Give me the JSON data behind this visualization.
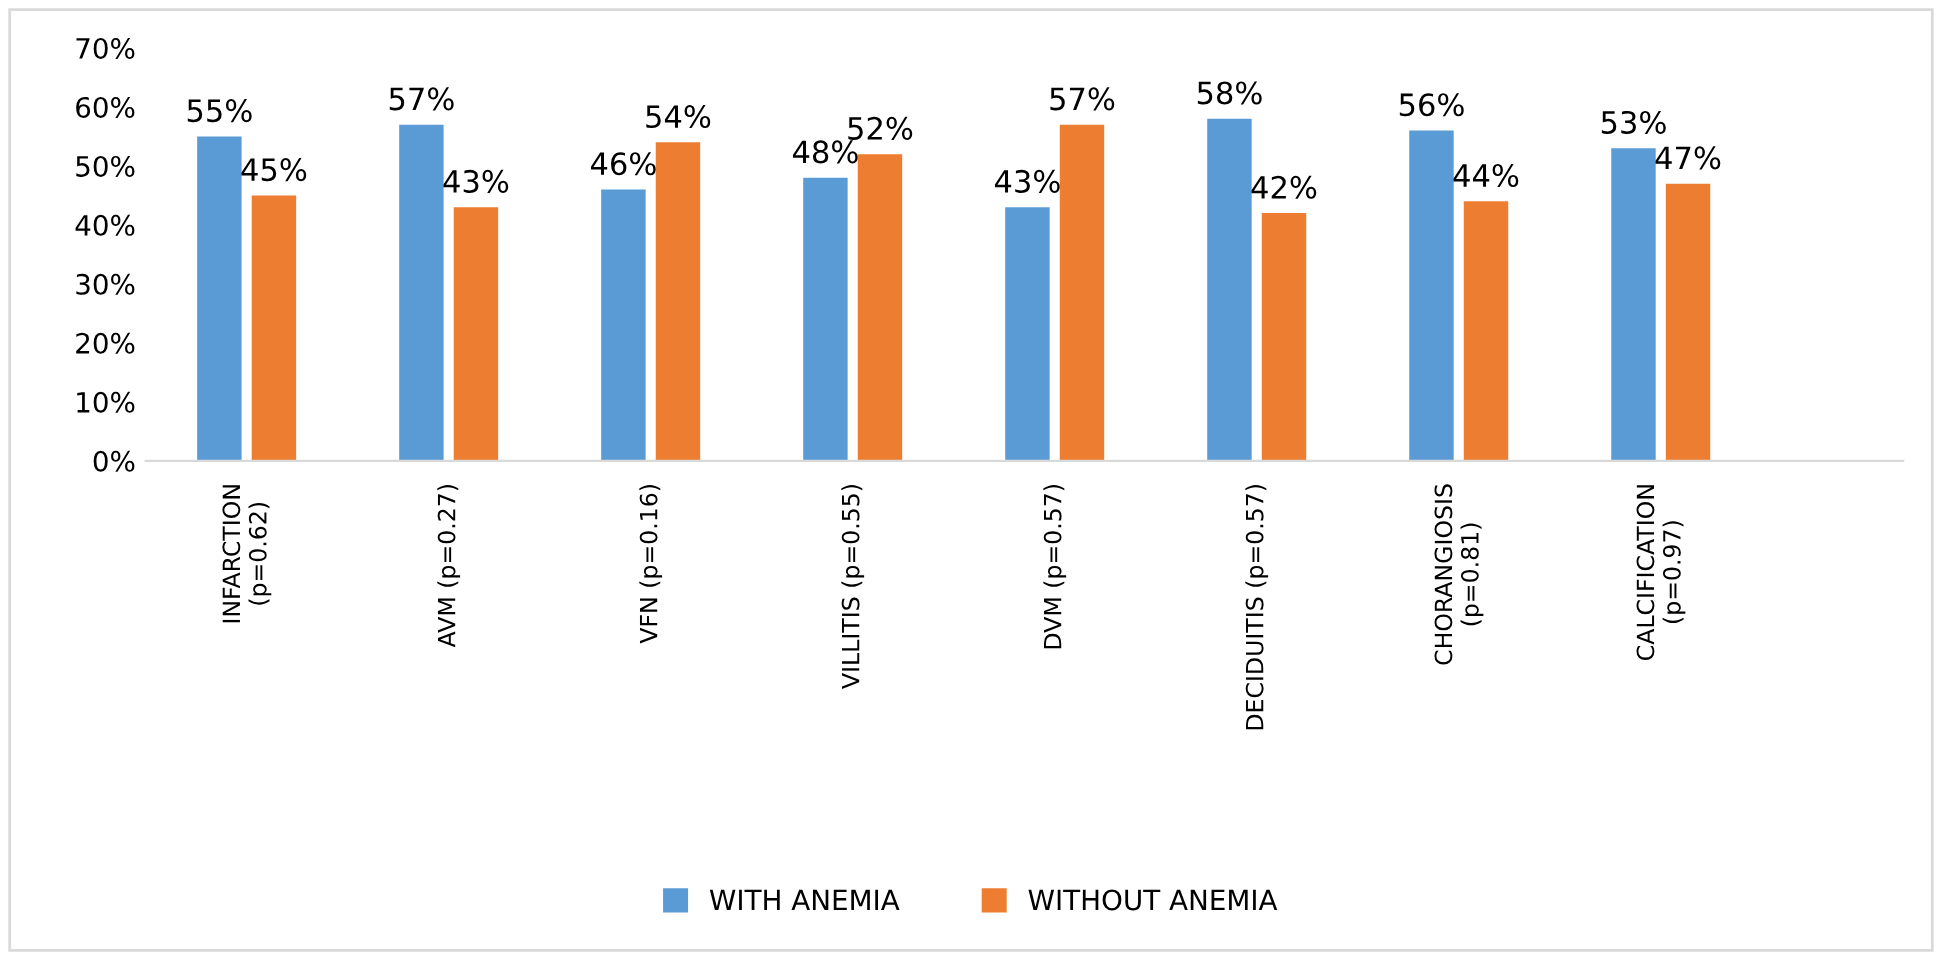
{
  "chart_data": {
    "type": "bar",
    "categories": [
      "INFARCTION\n(p=0.62)",
      "AVM (p=0.27)",
      "VFN (p=0.16)",
      "VILLITIS (p=0.55)",
      "DVM (p=0.57)",
      "DECIDUITIS (p=0.57)",
      "CHORANGIOSIS\n(p=0.81)",
      "CALCIFICATION\n(p=0.97)"
    ],
    "series": [
      {
        "name": "WITH ANEMIA",
        "color": "#5b9bd5",
        "values": [
          55,
          57,
          46,
          48,
          43,
          58,
          56,
          53
        ],
        "value_labels": [
          "55%",
          "57%",
          "46%",
          "48%",
          "43%",
          "58%",
          "56%",
          "53%"
        ]
      },
      {
        "name": "WITHOUT ANEMIA",
        "color": "#ed7d31",
        "values": [
          45,
          43,
          54,
          52,
          57,
          42,
          44,
          47
        ],
        "value_labels": [
          "45%",
          "43%",
          "54%",
          "52%",
          "57%",
          "42%",
          "44%",
          "47%"
        ]
      }
    ],
    "ylim": [
      0,
      70
    ],
    "yticks": [
      {
        "value": 0,
        "label": "0%"
      },
      {
        "value": 10,
        "label": "10%"
      },
      {
        "value": 20,
        "label": "20%"
      },
      {
        "value": 30,
        "label": "30%"
      },
      {
        "value": 40,
        "label": "40%"
      },
      {
        "value": 50,
        "label": "50%"
      },
      {
        "value": 60,
        "label": "60%"
      },
      {
        "value": 70,
        "label": "70%"
      }
    ],
    "grid": false,
    "legend": "bottom"
  }
}
